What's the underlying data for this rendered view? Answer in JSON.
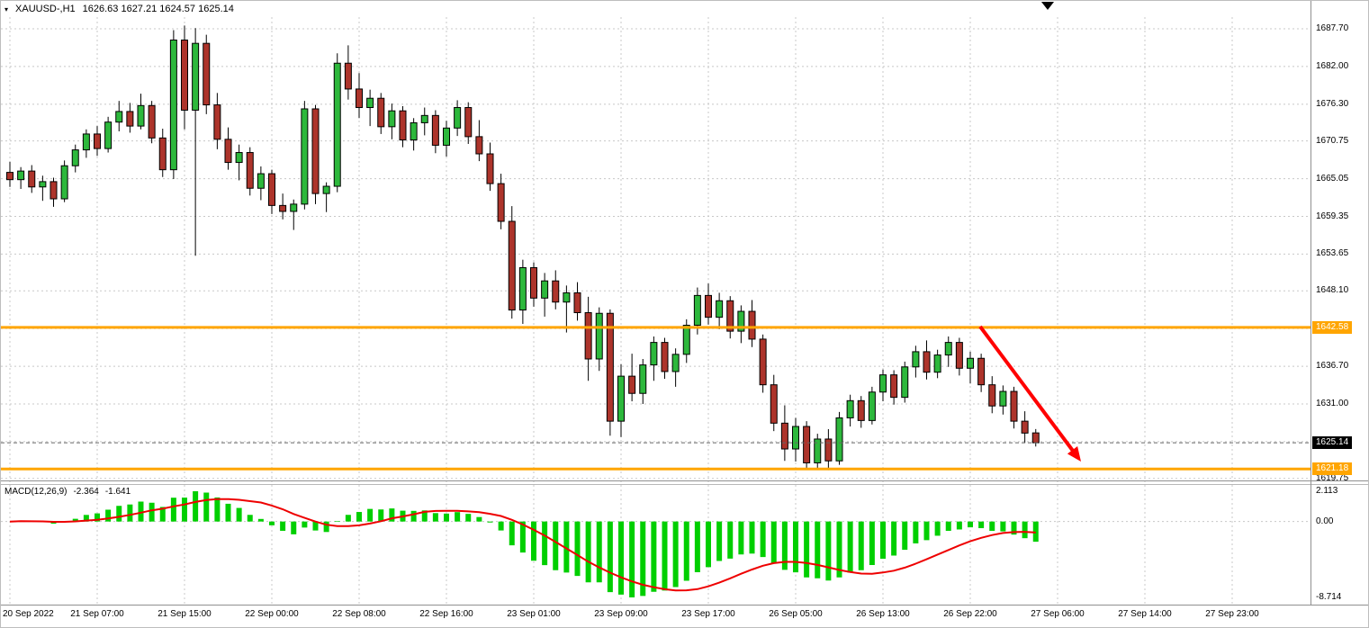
{
  "colors": {
    "bull": "#2db83c",
    "bear": "#ad342b",
    "wick": "#000000",
    "grid": "#c8c8c8",
    "hist": "#00cf00",
    "signal": "#ee0000",
    "level": "#ffa500",
    "current_line": "#666666",
    "arrow": "#ff0000",
    "separator": "#909090"
  },
  "header": {
    "toggle_icon": "▾",
    "symbol_timeframe": "XAUUSD-,H1",
    "ohlc": "1626.63 1627.21 1624.57 1625.14"
  },
  "macd_panel": {
    "label": "MACD(12,26,9)",
    "main_value": "-2.364",
    "signal_value": "-1.641",
    "axis_ticks": [
      "2.113",
      "0.00",
      "-8.714"
    ]
  },
  "chart_data": {
    "type": "candlestick",
    "symbol": "XAUUSD-",
    "timeframe": "H1",
    "ohlc_current": {
      "open": 1626.63,
      "high": 1627.21,
      "low": 1624.57,
      "close": 1625.14
    },
    "ylim": [
      1618.5,
      1690.0
    ],
    "price_tick_labels": [
      "1687.70",
      "1682.00",
      "1676.30",
      "1670.75",
      "1665.05",
      "1659.35",
      "1653.65",
      "1648.10",
      "1636.70",
      "1631.00",
      "1619.75"
    ],
    "price_gridlines": [
      1687.7,
      1682.0,
      1676.3,
      1670.75,
      1665.05,
      1659.35,
      1653.65,
      1648.1,
      1642.4,
      1636.7,
      1631.0,
      1625.3,
      1619.75
    ],
    "time_labels": [
      "20 Sep 2022",
      "21 Sep 07:00",
      "21 Sep 15:00",
      "22 Sep 00:00",
      "22 Sep 08:00",
      "22 Sep 16:00",
      "23 Sep 01:00",
      "23 Sep 09:00",
      "23 Sep 17:00",
      "26 Sep 05:00",
      "26 Sep 13:00",
      "26 Sep 22:00",
      "27 Sep 06:00",
      "27 Sep 14:00",
      "27 Sep 23:00"
    ],
    "levels": {
      "resistance": 1642.58,
      "support": 1621.18,
      "current_price": 1625.14
    },
    "level_labels": {
      "resistance": "1642.58",
      "support": "1621.18",
      "current": "1625.14"
    },
    "indicator": {
      "name": "MACD",
      "params": [
        12,
        26,
        9
      ],
      "main": -2.364,
      "signal": -1.641,
      "scale_max": 2.113,
      "scale_min": -8.714
    },
    "candles": [
      [
        1666.0,
        1667.6,
        1663.8,
        1664.9
      ],
      [
        1664.9,
        1666.8,
        1663.5,
        1666.2
      ],
      [
        1666.2,
        1667.1,
        1662.9,
        1663.8
      ],
      [
        1663.8,
        1665.5,
        1661.7,
        1664.6
      ],
      [
        1664.6,
        1665.2,
        1660.8,
        1662.0
      ],
      [
        1662.0,
        1667.8,
        1661.5,
        1667.0
      ],
      [
        1667.0,
        1670.2,
        1666.0,
        1669.4
      ],
      [
        1669.4,
        1672.5,
        1668.2,
        1671.8
      ],
      [
        1671.8,
        1673.0,
        1668.5,
        1669.6
      ],
      [
        1669.6,
        1674.4,
        1669.0,
        1673.6
      ],
      [
        1673.6,
        1676.8,
        1672.2,
        1675.2
      ],
      [
        1675.2,
        1676.5,
        1672.0,
        1673.0
      ],
      [
        1673.0,
        1677.9,
        1672.5,
        1676.1
      ],
      [
        1676.1,
        1676.8,
        1670.4,
        1671.2
      ],
      [
        1671.2,
        1672.6,
        1665.3,
        1666.4
      ],
      [
        1666.4,
        1687.5,
        1665.0,
        1686.0
      ],
      [
        1686.0,
        1688.2,
        1672.5,
        1675.4
      ],
      [
        1675.4,
        1687.8,
        1653.4,
        1685.5
      ],
      [
        1685.5,
        1686.8,
        1674.8,
        1676.2
      ],
      [
        1676.2,
        1678.0,
        1669.5,
        1671.0
      ],
      [
        1671.0,
        1672.8,
        1666.4,
        1667.5
      ],
      [
        1667.5,
        1670.2,
        1664.8,
        1669.0
      ],
      [
        1669.0,
        1669.8,
        1662.5,
        1663.6
      ],
      [
        1663.6,
        1666.9,
        1661.8,
        1665.8
      ],
      [
        1665.8,
        1666.4,
        1659.7,
        1661.0
      ],
      [
        1661.0,
        1662.8,
        1658.9,
        1660.1
      ],
      [
        1660.1,
        1661.9,
        1657.3,
        1661.2
      ],
      [
        1661.2,
        1676.8,
        1660.4,
        1675.6
      ],
      [
        1675.6,
        1676.2,
        1661.2,
        1662.8
      ],
      [
        1662.8,
        1664.5,
        1660.0,
        1663.9
      ],
      [
        1663.9,
        1684.0,
        1663.0,
        1682.5
      ],
      [
        1682.5,
        1685.2,
        1677.0,
        1678.6
      ],
      [
        1678.6,
        1681.0,
        1674.2,
        1675.8
      ],
      [
        1675.8,
        1678.5,
        1673.0,
        1677.2
      ],
      [
        1677.2,
        1678.0,
        1671.8,
        1672.9
      ],
      [
        1672.9,
        1676.4,
        1671.0,
        1675.3
      ],
      [
        1675.3,
        1676.0,
        1669.8,
        1670.9
      ],
      [
        1670.9,
        1674.2,
        1669.3,
        1673.5
      ],
      [
        1673.5,
        1675.8,
        1671.6,
        1674.6
      ],
      [
        1674.6,
        1675.4,
        1668.9,
        1670.1
      ],
      [
        1670.1,
        1673.8,
        1668.4,
        1672.7
      ],
      [
        1672.7,
        1676.9,
        1671.5,
        1675.8
      ],
      [
        1675.8,
        1676.6,
        1670.3,
        1671.4
      ],
      [
        1671.4,
        1673.9,
        1667.7,
        1668.8
      ],
      [
        1668.8,
        1670.5,
        1663.2,
        1664.3
      ],
      [
        1664.3,
        1665.8,
        1657.4,
        1658.6
      ],
      [
        1658.6,
        1660.9,
        1643.9,
        1645.2
      ],
      [
        1645.2,
        1652.8,
        1643.1,
        1651.6
      ],
      [
        1651.6,
        1652.4,
        1645.7,
        1647.0
      ],
      [
        1647.0,
        1650.8,
        1644.2,
        1649.6
      ],
      [
        1649.6,
        1651.2,
        1645.3,
        1646.4
      ],
      [
        1646.4,
        1648.9,
        1641.8,
        1647.8
      ],
      [
        1647.8,
        1649.4,
        1643.6,
        1644.8
      ],
      [
        1644.8,
        1647.2,
        1634.5,
        1637.8
      ],
      [
        1637.8,
        1645.6,
        1636.0,
        1644.7
      ],
      [
        1644.7,
        1645.3,
        1626.2,
        1628.4
      ],
      [
        1628.4,
        1637.0,
        1626.0,
        1635.2
      ],
      [
        1635.2,
        1638.6,
        1631.4,
        1632.6
      ],
      [
        1632.6,
        1637.8,
        1631.0,
        1636.9
      ],
      [
        1636.9,
        1641.2,
        1634.5,
        1640.3
      ],
      [
        1640.3,
        1641.0,
        1634.8,
        1635.9
      ],
      [
        1635.9,
        1639.4,
        1633.6,
        1638.5
      ],
      [
        1638.5,
        1643.8,
        1637.2,
        1642.9
      ],
      [
        1642.9,
        1648.6,
        1641.5,
        1647.4
      ],
      [
        1647.4,
        1649.2,
        1643.0,
        1644.1
      ],
      [
        1644.1,
        1647.8,
        1642.3,
        1646.6
      ],
      [
        1646.6,
        1647.3,
        1640.9,
        1642.0
      ],
      [
        1642.0,
        1645.9,
        1640.2,
        1645.0
      ],
      [
        1645.0,
        1646.7,
        1639.6,
        1640.8
      ],
      [
        1640.8,
        1641.5,
        1632.7,
        1633.9
      ],
      [
        1633.9,
        1635.4,
        1626.9,
        1628.1
      ],
      [
        1628.1,
        1630.8,
        1622.4,
        1624.2
      ],
      [
        1624.2,
        1628.9,
        1622.3,
        1627.6
      ],
      [
        1627.6,
        1628.4,
        1621.3,
        1622.1
      ],
      [
        1622.1,
        1626.5,
        1621.2,
        1625.7
      ],
      [
        1625.7,
        1627.2,
        1621.0,
        1622.4
      ],
      [
        1622.4,
        1629.8,
        1621.8,
        1628.9
      ],
      [
        1628.9,
        1632.4,
        1627.6,
        1631.5
      ],
      [
        1631.5,
        1632.2,
        1627.4,
        1628.5
      ],
      [
        1628.5,
        1633.6,
        1627.9,
        1632.8
      ],
      [
        1632.8,
        1636.2,
        1631.4,
        1635.4
      ],
      [
        1635.4,
        1636.1,
        1630.9,
        1632.0
      ],
      [
        1632.0,
        1637.4,
        1631.2,
        1636.6
      ],
      [
        1636.6,
        1639.8,
        1635.0,
        1638.9
      ],
      [
        1638.9,
        1640.6,
        1634.7,
        1635.8
      ],
      [
        1635.8,
        1639.2,
        1634.9,
        1638.4
      ],
      [
        1638.4,
        1641.2,
        1636.6,
        1640.3
      ],
      [
        1640.3,
        1641.0,
        1635.3,
        1636.4
      ],
      [
        1636.4,
        1638.9,
        1634.1,
        1637.9
      ],
      [
        1637.9,
        1638.6,
        1632.8,
        1633.9
      ],
      [
        1633.9,
        1635.2,
        1629.6,
        1630.7
      ],
      [
        1630.7,
        1633.8,
        1629.4,
        1632.9
      ],
      [
        1632.9,
        1633.6,
        1627.3,
        1628.4
      ],
      [
        1628.4,
        1629.9,
        1625.1,
        1626.6
      ],
      [
        1626.63,
        1627.21,
        1624.57,
        1625.14
      ]
    ]
  }
}
